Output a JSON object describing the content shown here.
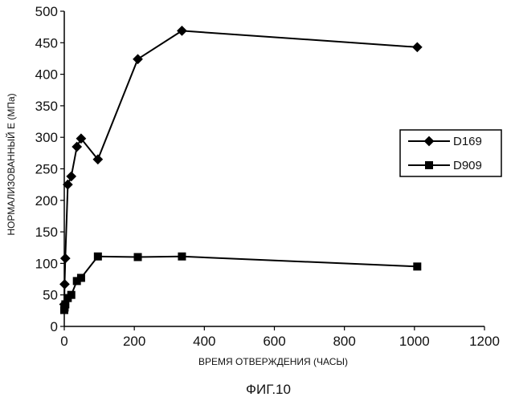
{
  "figure_caption": "ФИГ.10",
  "chart_data": {
    "type": "line",
    "xlabel": "ВРЕМЯ ОТВЕРЖДЕНИЯ (ЧАСЫ)",
    "ylabel": "НОРМАЛИЗОВАННЫЙ Е (МПа)",
    "xlim": [
      0,
      1200
    ],
    "ylim": [
      0,
      500
    ],
    "xticks": [
      0,
      200,
      400,
      600,
      800,
      1000,
      1200
    ],
    "yticks": [
      0,
      50,
      100,
      150,
      200,
      250,
      300,
      350,
      400,
      450,
      500
    ],
    "grid": false,
    "legend_position": "right",
    "series": [
      {
        "name": "D169",
        "marker": "diamond",
        "color": "#000000",
        "x": [
          0,
          1,
          3,
          10,
          20,
          36,
          48,
          96,
          210,
          336,
          1008
        ],
        "y": [
          35,
          67,
          108,
          225,
          238,
          285,
          298,
          265,
          424,
          469,
          443
        ]
      },
      {
        "name": "D909",
        "marker": "square",
        "color": "#000000",
        "x": [
          0,
          1,
          3,
          10,
          20,
          36,
          48,
          96,
          210,
          336,
          1008
        ],
        "y": [
          26,
          30,
          35,
          45,
          50,
          72,
          77,
          111,
          110,
          111,
          95
        ]
      }
    ]
  }
}
